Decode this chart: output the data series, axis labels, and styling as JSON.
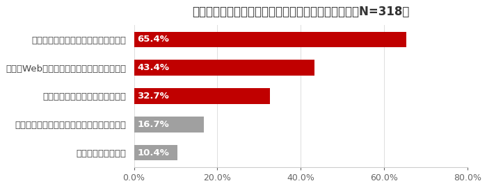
{
  "title": "報道後、気を付けるようになったこと（報道認知者、N=318）",
  "categories": [
    "情報を鵜呑みにしないようにしている",
    "複数のWebサイトを参照するようにしている",
    "出典元を確認するようにしている",
    "医療関係者が発信する情報のみ参照している",
    "特に何もしていない"
  ],
  "values": [
    65.4,
    43.4,
    32.7,
    16.7,
    10.4
  ],
  "bar_colors": [
    "#c00000",
    "#c00000",
    "#c00000",
    "#a0a0a0",
    "#a0a0a0"
  ],
  "xlim": [
    0,
    80
  ],
  "xticks": [
    0,
    20,
    40,
    60,
    80
  ],
  "xticklabels": [
    "0.0%",
    "20.0%",
    "40.0%",
    "60.0%",
    "80.0%"
  ],
  "title_fontsize": 12,
  "label_fontsize": 9.5,
  "value_fontsize": 9.5,
  "tick_fontsize": 9,
  "background_color": "#ffffff",
  "bar_height": 0.55
}
